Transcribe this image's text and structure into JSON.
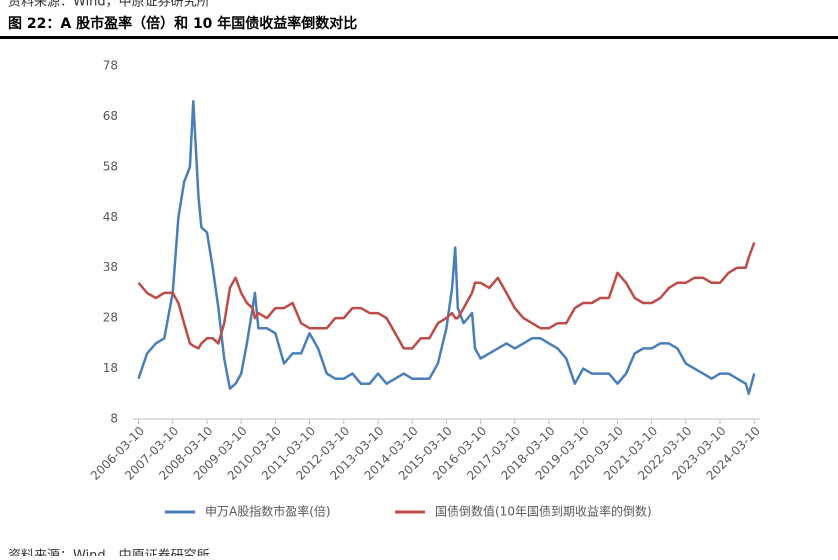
{
  "header": {
    "source_top": "资料来源：Wind，中原证券研究所",
    "title": "图 22：A 股市盈率（倍）和 10 年国债收益率倒数对比"
  },
  "chart_data": {
    "type": "line",
    "x": [
      "2006-03-10",
      "2006-06-10",
      "2006-09-10",
      "2006-12-10",
      "2007-03-10",
      "2007-05-10",
      "2007-07-10",
      "2007-09-10",
      "2007-10-16",
      "2007-12-10",
      "2008-01-10",
      "2008-03-10",
      "2008-05-10",
      "2008-07-10",
      "2008-09-10",
      "2008-11-10",
      "2009-01-10",
      "2009-03-10",
      "2009-05-10",
      "2009-07-10",
      "2009-08-04",
      "2009-09-10",
      "2009-12-10",
      "2010-03-10",
      "2010-06-10",
      "2010-09-10",
      "2010-12-10",
      "2011-03-10",
      "2011-06-10",
      "2011-09-10",
      "2011-12-10",
      "2012-03-10",
      "2012-06-10",
      "2012-09-10",
      "2012-12-10",
      "2013-03-10",
      "2013-06-10",
      "2013-09-10",
      "2013-12-10",
      "2014-03-10",
      "2014-06-10",
      "2014-09-10",
      "2014-12-10",
      "2015-03-10",
      "2015-05-10",
      "2015-06-12",
      "2015-07-10",
      "2015-09-10",
      "2015-12-10",
      "2016-01-10",
      "2016-03-10",
      "2016-06-10",
      "2016-09-10",
      "2016-12-10",
      "2017-03-10",
      "2017-06-10",
      "2017-09-10",
      "2017-12-10",
      "2018-03-10",
      "2018-06-10",
      "2018-09-10",
      "2018-12-10",
      "2019-03-10",
      "2019-06-10",
      "2019-09-10",
      "2019-12-10",
      "2020-03-10",
      "2020-06-10",
      "2020-09-10",
      "2020-12-10",
      "2021-03-10",
      "2021-06-10",
      "2021-09-10",
      "2021-12-10",
      "2022-03-10",
      "2022-06-10",
      "2022-09-10",
      "2022-12-10",
      "2023-03-10",
      "2023-06-10",
      "2023-09-10",
      "2023-12-10",
      "2024-01-10",
      "2024-03-10"
    ],
    "series": [
      {
        "name": "申万A股指数市盈率(倍)",
        "color": "#4a7ebb",
        "values": [
          16,
          21,
          23,
          24,
          33,
          48,
          55,
          58,
          71,
          52,
          46,
          45,
          38,
          30,
          20,
          14,
          15,
          17,
          23,
          30,
          33,
          26,
          26,
          25,
          19,
          21,
          21,
          25,
          22,
          17,
          16,
          16,
          17,
          15,
          15,
          17,
          15,
          16,
          17,
          16,
          16,
          16,
          19,
          26,
          34,
          42,
          30,
          27,
          29,
          22,
          20,
          21,
          22,
          23,
          22,
          23,
          24,
          24,
          23,
          22,
          20,
          15,
          18,
          17,
          17,
          17,
          15,
          17,
          21,
          22,
          22,
          23,
          23,
          22,
          19,
          18,
          17,
          16,
          17,
          17,
          16,
          15,
          13,
          17
        ]
      },
      {
        "name": "国债倒数值(10年国债到期收益率的倒数)",
        "color": "#be4b48",
        "values": [
          35,
          33,
          32,
          33,
          33,
          31,
          27,
          23,
          22.5,
          22,
          23,
          24,
          24,
          23,
          27,
          34,
          36,
          33,
          31,
          30,
          28,
          29,
          28,
          30,
          30,
          31,
          27,
          26,
          26,
          26,
          28,
          28,
          30,
          30,
          29,
          29,
          28,
          25,
          22,
          22,
          24,
          24,
          27,
          28,
          29,
          28,
          28,
          30,
          33,
          35,
          35,
          34,
          36,
          33,
          30,
          28,
          27,
          26,
          26,
          27,
          27,
          30,
          31,
          31,
          32,
          32,
          37,
          35,
          32,
          31,
          31,
          32,
          34,
          35,
          35,
          36,
          36,
          35,
          35,
          37,
          38,
          38,
          40,
          43
        ]
      }
    ],
    "xlim": [
      "2006-01-10",
      "2024-05-10"
    ],
    "xticks": [
      "2006-03-10",
      "2007-03-10",
      "2008-03-10",
      "2009-03-10",
      "2010-03-10",
      "2011-03-10",
      "2012-03-10",
      "2013-03-10",
      "2014-03-10",
      "2015-03-10",
      "2016-03-10",
      "2017-03-10",
      "2018-03-10",
      "2019-03-10",
      "2020-03-10",
      "2021-03-10",
      "2022-03-10",
      "2023-03-10",
      "2024-03-10"
    ],
    "ylim": [
      8,
      78
    ],
    "yticks": [
      8,
      18,
      28,
      38,
      48,
      58,
      68,
      78
    ],
    "grid": false,
    "legend": "bottom"
  },
  "footer": {
    "source_bottom": "资料来源：Wind，中原证券研究所"
  }
}
